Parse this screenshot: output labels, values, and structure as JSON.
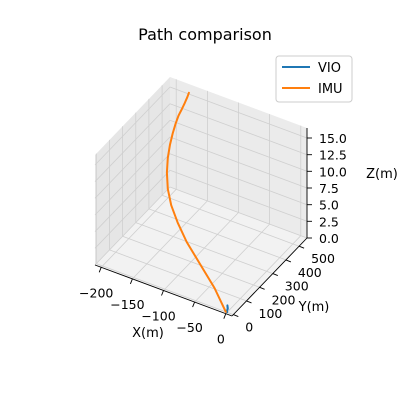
{
  "chart_data": {
    "type": "line",
    "projection": "3d",
    "title": "Path comparison",
    "xlabel": "X(m)",
    "ylabel": "Y(m)",
    "zlabel": "Z(m)",
    "xlim": [
      -210,
      10
    ],
    "ylim": [
      -10,
      560
    ],
    "zlim": [
      0,
      16.5
    ],
    "x_ticks": [
      -200,
      -150,
      -100,
      -50,
      0
    ],
    "y_ticks": [
      0,
      100,
      200,
      300,
      400,
      500
    ],
    "z_ticks": [
      0.0,
      2.5,
      5.0,
      7.5,
      10.0,
      12.5,
      15.0
    ],
    "x_tick_labels": [
      "−200",
      "−150",
      "−100",
      "−50",
      "0"
    ],
    "y_tick_labels": [
      "0",
      "100",
      "200",
      "300",
      "400",
      "500"
    ],
    "z_tick_labels": [
      "0.0",
      "2.5",
      "5.0",
      "7.5",
      "10.0",
      "12.5",
      "15.0"
    ],
    "grid": true,
    "legend_position": "top-right",
    "series": [
      {
        "name": "VIO",
        "color": "#1f77b4",
        "points": [
          {
            "x": 0,
            "y": 0,
            "z": 0.0
          },
          {
            "x": 0,
            "y": 0,
            "z": 0.3
          },
          {
            "x": 1,
            "y": 1,
            "z": 0.6
          },
          {
            "x": 0,
            "y": 2,
            "z": 1.0
          },
          {
            "x": 1,
            "y": 0,
            "z": 0.5
          }
        ]
      },
      {
        "name": "IMU",
        "color": "#ff7f0e",
        "points": [
          {
            "x": -2,
            "y": 0,
            "z": 0.0
          },
          {
            "x": -35,
            "y": 70,
            "z": 1.0
          },
          {
            "x": -70,
            "y": 130,
            "z": 2.0
          },
          {
            "x": -105,
            "y": 190,
            "z": 3.0
          },
          {
            "x": -130,
            "y": 240,
            "z": 4.0
          },
          {
            "x": -150,
            "y": 285,
            "z": 5.0
          },
          {
            "x": -165,
            "y": 330,
            "z": 6.0
          },
          {
            "x": -177,
            "y": 380,
            "z": 7.0
          },
          {
            "x": -185,
            "y": 425,
            "z": 8.0
          },
          {
            "x": -190,
            "y": 465,
            "z": 9.0
          },
          {
            "x": -192,
            "y": 495,
            "z": 10.0
          },
          {
            "x": -192,
            "y": 517,
            "z": 11.0
          },
          {
            "x": -190,
            "y": 530,
            "z": 12.0
          },
          {
            "x": -186,
            "y": 537,
            "z": 13.0
          },
          {
            "x": -182,
            "y": 540,
            "z": 14.0
          },
          {
            "x": -178,
            "y": 540,
            "z": 15.0
          },
          {
            "x": -175,
            "y": 538,
            "z": 15.8
          }
        ]
      }
    ]
  }
}
